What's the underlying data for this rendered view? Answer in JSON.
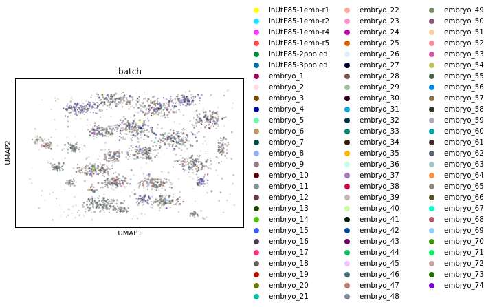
{
  "chart_data": {
    "type": "scatter",
    "title": "batch",
    "xlabel": "UMAP1",
    "ylabel": "UMAP2",
    "legend_placement": "right",
    "grid": false,
    "categories": [
      {
        "name": "lnUtE85-1emb-r1",
        "color": "#ffff00"
      },
      {
        "name": "lnUtE85-1emb-r2",
        "color": "#1ce6ff"
      },
      {
        "name": "lnUtE85-1emb-r4",
        "color": "#ff34ff"
      },
      {
        "name": "lnUtE85-1emb-r5",
        "color": "#ff4a46"
      },
      {
        "name": "lnUtE85-2pooled",
        "color": "#008941"
      },
      {
        "name": "lnUtE85-3pooled",
        "color": "#006fa6"
      },
      {
        "name": "embryo_1",
        "color": "#a30059"
      },
      {
        "name": "embryo_2",
        "color": "#ffdbe5"
      },
      {
        "name": "embryo_3",
        "color": "#7a4900"
      },
      {
        "name": "embryo_4",
        "color": "#0000a6"
      },
      {
        "name": "embryo_5",
        "color": "#63ffac"
      },
      {
        "name": "embryo_6",
        "color": "#b79762"
      },
      {
        "name": "embryo_7",
        "color": "#004d43"
      },
      {
        "name": "embryo_8",
        "color": "#8fb0ff"
      },
      {
        "name": "embryo_9",
        "color": "#997d87"
      },
      {
        "name": "embryo_10",
        "color": "#5a0007"
      },
      {
        "name": "embryo_11",
        "color": "#809693"
      },
      {
        "name": "embryo_12",
        "color": "#6a3a4c"
      },
      {
        "name": "embryo_13",
        "color": "#1b4400"
      },
      {
        "name": "embryo_14",
        "color": "#4fc601"
      },
      {
        "name": "embryo_15",
        "color": "#3b5dff"
      },
      {
        "name": "embryo_16",
        "color": "#4a3b53"
      },
      {
        "name": "embryo_17",
        "color": "#ff2f80"
      },
      {
        "name": "embryo_18",
        "color": "#61615a"
      },
      {
        "name": "embryo_19",
        "color": "#ba0900"
      },
      {
        "name": "embryo_20",
        "color": "#6b7900"
      },
      {
        "name": "embryo_21",
        "color": "#00c2a0"
      },
      {
        "name": "embryo_22",
        "color": "#ffaa92"
      },
      {
        "name": "embryo_23",
        "color": "#ff90c9"
      },
      {
        "name": "embryo_24",
        "color": "#b903aa"
      },
      {
        "name": "embryo_25",
        "color": "#d16100"
      },
      {
        "name": "embryo_26",
        "color": "#ddefff"
      },
      {
        "name": "embryo_27",
        "color": "#000035"
      },
      {
        "name": "embryo_28",
        "color": "#7b4f4b"
      },
      {
        "name": "embryo_29",
        "color": "#a1c299"
      },
      {
        "name": "embryo_30",
        "color": "#300018"
      },
      {
        "name": "embryo_31",
        "color": "#0aa6d8"
      },
      {
        "name": "embryo_32",
        "color": "#013349"
      },
      {
        "name": "embryo_33",
        "color": "#00846f"
      },
      {
        "name": "embryo_34",
        "color": "#372101"
      },
      {
        "name": "embryo_35",
        "color": "#ffb500"
      },
      {
        "name": "embryo_36",
        "color": "#c2ffed"
      },
      {
        "name": "embryo_37",
        "color": "#a079bf"
      },
      {
        "name": "embryo_38",
        "color": "#cc0744"
      },
      {
        "name": "embryo_39",
        "color": "#c0b9b2"
      },
      {
        "name": "embryo_40",
        "color": "#c2ff99"
      },
      {
        "name": "embryo_41",
        "color": "#001e09"
      },
      {
        "name": "embryo_42",
        "color": "#00489c"
      },
      {
        "name": "embryo_43",
        "color": "#6f0062"
      },
      {
        "name": "embryo_44",
        "color": "#0cbd66"
      },
      {
        "name": "embryo_45",
        "color": "#eec3ff"
      },
      {
        "name": "embryo_46",
        "color": "#456d75"
      },
      {
        "name": "embryo_47",
        "color": "#b77b68"
      },
      {
        "name": "embryo_48",
        "color": "#7a87a1"
      },
      {
        "name": "embryo_49",
        "color": "#788d66"
      },
      {
        "name": "embryo_50",
        "color": "#885578"
      },
      {
        "name": "embryo_51",
        "color": "#fad09f"
      },
      {
        "name": "embryo_52",
        "color": "#ff8a9a"
      },
      {
        "name": "embryo_53",
        "color": "#d157a0"
      },
      {
        "name": "embryo_54",
        "color": "#bec459"
      },
      {
        "name": "embryo_55",
        "color": "#456648"
      },
      {
        "name": "embryo_56",
        "color": "#0086ed"
      },
      {
        "name": "embryo_57",
        "color": "#886f4c"
      },
      {
        "name": "embryo_58",
        "color": "#34362d"
      },
      {
        "name": "embryo_59",
        "color": "#b4a8bd"
      },
      {
        "name": "embryo_60",
        "color": "#00a6aa"
      },
      {
        "name": "embryo_61",
        "color": "#452c2c"
      },
      {
        "name": "embryo_62",
        "color": "#636375"
      },
      {
        "name": "embryo_63",
        "color": "#a3c8c9"
      },
      {
        "name": "embryo_64",
        "color": "#ff913f"
      },
      {
        "name": "embryo_65",
        "color": "#938a81"
      },
      {
        "name": "embryo_66",
        "color": "#575329"
      },
      {
        "name": "embryo_67",
        "color": "#00fecf"
      },
      {
        "name": "embryo_68",
        "color": "#b05b6f"
      },
      {
        "name": "embryo_69",
        "color": "#8cd0ff"
      },
      {
        "name": "embryo_70",
        "color": "#3b9700"
      },
      {
        "name": "embryo_71",
        "color": "#04f757"
      },
      {
        "name": "embryo_72",
        "color": "#c8a1a1"
      },
      {
        "name": "embryo_73",
        "color": "#1e6e00"
      },
      {
        "name": "embryo_74",
        "color": "#7900d7"
      }
    ]
  }
}
